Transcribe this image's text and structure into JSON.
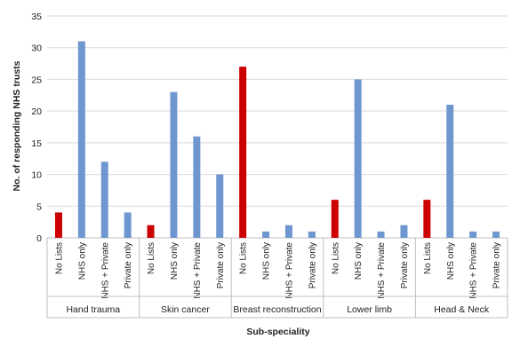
{
  "chart_data": {
    "type": "bar",
    "title": "",
    "xlabel": "Sub-speciality",
    "ylabel": "No. of responding NHS trusts",
    "ylim": [
      0,
      35
    ],
    "yticks": [
      0,
      5,
      10,
      15,
      20,
      25,
      30,
      35
    ],
    "grid": true,
    "legend": "none",
    "colors": {
      "no_lists": "#cc0000",
      "other": "#6f97cf",
      "grid": "#d9d9d9",
      "axis": "#bfbfbf"
    },
    "groups": [
      {
        "name": "Hand trauma",
        "bars": [
          {
            "label": "No Lists",
            "value": 4
          },
          {
            "label": "NHS only",
            "value": 31
          },
          {
            "label": "NHS + Private",
            "value": 12
          },
          {
            "label": "Private only",
            "value": 4
          }
        ]
      },
      {
        "name": "Skin cancer",
        "bars": [
          {
            "label": "No Lists",
            "value": 2
          },
          {
            "label": "NHS only",
            "value": 23
          },
          {
            "label": "NHS + Private",
            "value": 16
          },
          {
            "label": "Private only",
            "value": 10
          }
        ]
      },
      {
        "name": "Breast reconstruction",
        "bars": [
          {
            "label": "No Lists",
            "value": 27
          },
          {
            "label": "NHS only",
            "value": 1
          },
          {
            "label": "NHS + Private",
            "value": 2
          },
          {
            "label": "Private only",
            "value": 1
          }
        ]
      },
      {
        "name": "Lower limb",
        "bars": [
          {
            "label": "No Lists",
            "value": 6
          },
          {
            "label": "NHS only",
            "value": 25
          },
          {
            "label": "NHS + Private",
            "value": 1
          },
          {
            "label": "Private only",
            "value": 2
          }
        ]
      },
      {
        "name": "Head & Neck",
        "bars": [
          {
            "label": "No Lists",
            "value": 6
          },
          {
            "label": "NHS only",
            "value": 21
          },
          {
            "label": "NHS + Private",
            "value": 1
          },
          {
            "label": "Private only",
            "value": 1
          }
        ]
      }
    ]
  }
}
